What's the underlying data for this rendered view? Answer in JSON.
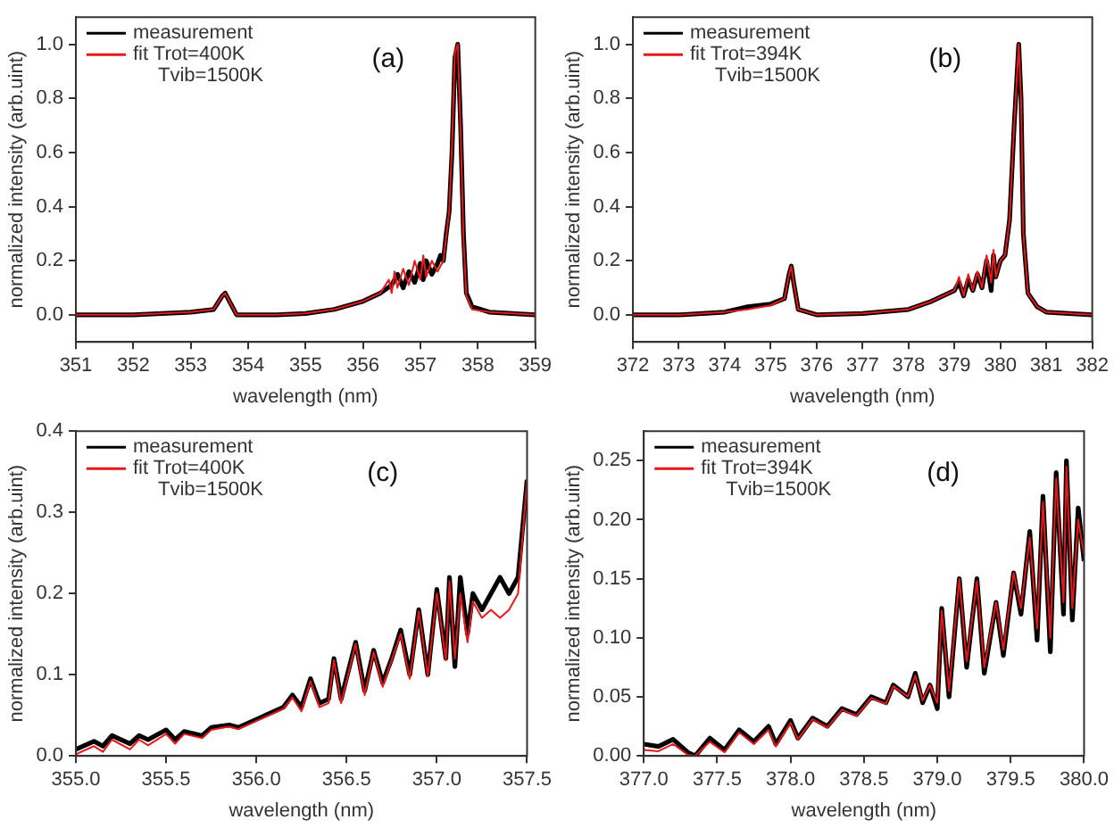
{
  "chart_data": [
    {
      "type": "line",
      "xlabel": "wavelength (nm)",
      "ylabel": "normalized intensity (arb.uint)",
      "annotations": [
        "(a)"
      ],
      "legend": "top left",
      "grid": false,
      "xlim": [
        351,
        359
      ],
      "xticks": [
        351,
        352,
        353,
        354,
        355,
        356,
        357,
        358,
        359
      ],
      "ylim": [
        -0.1,
        1.1
      ],
      "yticks": [
        {
          "value": 0,
          "label": "0.0"
        },
        {
          "value": 0.2,
          "label": "0.2"
        },
        {
          "value": 0.4,
          "label": "0.4"
        },
        {
          "value": 0.6,
          "label": "0.6"
        },
        {
          "value": 0.8,
          "label": "0.8"
        },
        {
          "value": 1,
          "label": "1.0"
        }
      ],
      "series": [
        {
          "name": "measurement",
          "color": "#000000",
          "x": [
            351,
            352,
            353,
            353.4,
            353.55,
            353.6,
            353.7,
            353.8,
            354.5,
            355,
            355.5,
            356,
            356.3,
            356.5,
            356.6,
            356.7,
            356.8,
            356.9,
            357,
            357.05,
            357.1,
            357.2,
            357.3,
            357.35,
            357.4,
            357.45,
            357.5,
            357.55,
            357.6,
            357.65,
            357.7,
            357.75,
            357.8,
            357.9,
            358.2,
            359
          ],
          "values": [
            0,
            0,
            0.01,
            0.02,
            0.07,
            0.08,
            0.04,
            0,
            0,
            0.005,
            0.02,
            0.05,
            0.08,
            0.11,
            0.15,
            0.1,
            0.16,
            0.12,
            0.19,
            0.13,
            0.2,
            0.15,
            0.19,
            0.22,
            0.2,
            0.3,
            0.38,
            0.6,
            0.95,
            1,
            0.7,
            0.3,
            0.08,
            0.03,
            0.01,
            0
          ]
        },
        {
          "name": "fit Trot=400K Tvib=1500K",
          "color": "#e8181a",
          "x": [
            351,
            352,
            353,
            353.4,
            353.55,
            353.6,
            353.7,
            353.8,
            354.5,
            355,
            355.5,
            356,
            356.3,
            356.45,
            356.5,
            356.55,
            356.6,
            356.7,
            356.8,
            356.9,
            357,
            357.05,
            357.1,
            357.2,
            357.3,
            357.4,
            357.45,
            357.5,
            357.55,
            357.6,
            357.65,
            357.7,
            357.75,
            357.8,
            357.9,
            358.2,
            359
          ],
          "values": [
            0,
            0,
            0.01,
            0.02,
            0.07,
            0.08,
            0.04,
            0,
            0,
            0.005,
            0.02,
            0.05,
            0.08,
            0.13,
            0.08,
            0.16,
            0.1,
            0.17,
            0.11,
            0.2,
            0.13,
            0.22,
            0.14,
            0.2,
            0.16,
            0.2,
            0.29,
            0.38,
            0.62,
            0.97,
            1,
            0.68,
            0.28,
            0.07,
            0.02,
            0.01,
            0
          ]
        }
      ]
    },
    {
      "type": "line",
      "xlabel": "wavelength (nm)",
      "ylabel": "normalized intensity (arb.uint)",
      "annotations": [
        "(b)"
      ],
      "legend": "top left",
      "grid": false,
      "xlim": [
        372,
        382
      ],
      "xticks": [
        372,
        373,
        374,
        375,
        376,
        377,
        378,
        379,
        380,
        381,
        382
      ],
      "ylim": [
        -0.1,
        1.1
      ],
      "yticks": [
        {
          "value": 0,
          "label": "0.0"
        },
        {
          "value": 0.2,
          "label": "0.2"
        },
        {
          "value": 0.4,
          "label": "0.4"
        },
        {
          "value": 0.6,
          "label": "0.6"
        },
        {
          "value": 0.8,
          "label": "0.8"
        },
        {
          "value": 1,
          "label": "1.0"
        }
      ],
      "series": [
        {
          "name": "measurement",
          "color": "#000000",
          "x": [
            372,
            373,
            374,
            374.5,
            375,
            375.3,
            375.4,
            375.45,
            375.5,
            375.6,
            376,
            377,
            378,
            378.5,
            379,
            379.1,
            379.2,
            379.3,
            379.4,
            379.5,
            379.6,
            379.7,
            379.8,
            379.85,
            379.9,
            380,
            380.1,
            380.2,
            380.3,
            380.4,
            380.45,
            380.5,
            380.6,
            380.8,
            381,
            382
          ],
          "values": [
            0,
            0,
            0.01,
            0.03,
            0.04,
            0.06,
            0.15,
            0.18,
            0.12,
            0.02,
            0,
            0.005,
            0.02,
            0.05,
            0.09,
            0.12,
            0.07,
            0.13,
            0.09,
            0.15,
            0.1,
            0.2,
            0.09,
            0.22,
            0.14,
            0.2,
            0.22,
            0.35,
            0.7,
            1,
            0.8,
            0.3,
            0.08,
            0.03,
            0.01,
            0
          ]
        },
        {
          "name": "fit Trot=394K Tvib=1500K",
          "color": "#e8181a",
          "x": [
            372,
            373,
            374,
            374.5,
            375,
            375.3,
            375.4,
            375.45,
            375.5,
            375.6,
            376,
            377,
            378,
            378.5,
            379,
            379.1,
            379.2,
            379.3,
            379.4,
            379.5,
            379.6,
            379.7,
            379.8,
            379.85,
            379.9,
            380,
            380.1,
            380.2,
            380.3,
            380.4,
            380.45,
            380.5,
            380.6,
            380.8,
            381,
            382
          ],
          "values": [
            0,
            0,
            0.01,
            0.02,
            0.035,
            0.06,
            0.15,
            0.18,
            0.12,
            0.02,
            0,
            0.005,
            0.02,
            0.05,
            0.09,
            0.14,
            0.07,
            0.15,
            0.09,
            0.16,
            0.1,
            0.22,
            0.12,
            0.24,
            0.14,
            0.2,
            0.22,
            0.35,
            0.7,
            1,
            0.8,
            0.3,
            0.08,
            0.03,
            0.01,
            0
          ]
        }
      ]
    },
    {
      "type": "line",
      "xlabel": "wavelength (nm)",
      "ylabel": "normalized intensity (arb.uint)",
      "annotations": [
        "(c)"
      ],
      "legend": "top left",
      "grid": false,
      "xlim": [
        355,
        357.5
      ],
      "xticks": [
        {
          "value": 355,
          "label": "355.0"
        },
        {
          "value": 355.5,
          "label": "355.5"
        },
        {
          "value": 356,
          "label": "356.0"
        },
        {
          "value": 356.5,
          "label": "356.5"
        },
        {
          "value": 357,
          "label": "357.0"
        },
        {
          "value": 357.5,
          "label": "357.5"
        }
      ],
      "ylim": [
        0,
        0.4
      ],
      "yticks": [
        {
          "value": 0,
          "label": "0.0"
        },
        {
          "value": 0.1,
          "label": "0.1"
        },
        {
          "value": 0.2,
          "label": "0.2"
        },
        {
          "value": 0.3,
          "label": "0.3"
        },
        {
          "value": 0.4,
          "label": "0.4"
        }
      ],
      "series": [
        {
          "name": "measurement",
          "color": "#000000",
          "x": [
            355,
            355.1,
            355.15,
            355.2,
            355.3,
            355.35,
            355.4,
            355.5,
            355.55,
            355.6,
            355.7,
            355.75,
            355.85,
            355.9,
            356,
            356.1,
            356.15,
            356.2,
            356.25,
            356.3,
            356.35,
            356.4,
            356.43,
            356.47,
            356.55,
            356.6,
            356.65,
            356.7,
            356.75,
            356.8,
            356.85,
            356.9,
            356.95,
            357,
            357.05,
            357.07,
            357.1,
            357.13,
            357.17,
            357.2,
            357.25,
            357.3,
            357.35,
            357.4,
            357.45,
            357.5
          ],
          "values": [
            0.008,
            0.018,
            0.012,
            0.025,
            0.015,
            0.025,
            0.02,
            0.032,
            0.02,
            0.03,
            0.025,
            0.035,
            0.038,
            0.035,
            0.045,
            0.055,
            0.06,
            0.075,
            0.06,
            0.095,
            0.065,
            0.07,
            0.12,
            0.07,
            0.14,
            0.08,
            0.13,
            0.09,
            0.12,
            0.155,
            0.1,
            0.18,
            0.1,
            0.205,
            0.12,
            0.22,
            0.11,
            0.22,
            0.15,
            0.2,
            0.18,
            0.2,
            0.22,
            0.2,
            0.22,
            0.34
          ]
        },
        {
          "name": "fit Trot=400K Tvib=1500K",
          "color": "#e8181a",
          "x": [
            355,
            355.1,
            355.15,
            355.2,
            355.3,
            355.35,
            355.4,
            355.5,
            355.55,
            355.6,
            355.7,
            355.75,
            355.85,
            355.9,
            356,
            356.1,
            356.15,
            356.2,
            356.25,
            356.3,
            356.35,
            356.4,
            356.43,
            356.47,
            356.55,
            356.6,
            356.65,
            356.7,
            356.75,
            356.8,
            356.85,
            356.9,
            356.95,
            357,
            357.05,
            357.07,
            357.1,
            357.13,
            357.17,
            357.2,
            357.25,
            357.3,
            357.35,
            357.4,
            357.45,
            357.5
          ],
          "values": [
            0.002,
            0.012,
            0.005,
            0.02,
            0.008,
            0.02,
            0.013,
            0.027,
            0.015,
            0.027,
            0.022,
            0.032,
            0.036,
            0.033,
            0.043,
            0.053,
            0.058,
            0.072,
            0.055,
            0.092,
            0.06,
            0.065,
            0.118,
            0.065,
            0.138,
            0.075,
            0.128,
            0.085,
            0.118,
            0.15,
            0.095,
            0.178,
            0.098,
            0.2,
            0.118,
            0.215,
            0.12,
            0.2,
            0.14,
            0.19,
            0.17,
            0.18,
            0.17,
            0.18,
            0.2,
            0.34
          ]
        }
      ]
    },
    {
      "type": "line",
      "xlabel": "wavelength (nm)",
      "ylabel": "normalized intensity (arb.uint)",
      "annotations": [
        "(d)"
      ],
      "legend": "top left",
      "grid": false,
      "xlim": [
        377,
        380
      ],
      "xticks": [
        {
          "value": 377,
          "label": "377.0"
        },
        {
          "value": 377.5,
          "label": "377.5"
        },
        {
          "value": 378,
          "label": "378.0"
        },
        {
          "value": 378.5,
          "label": "378.5"
        },
        {
          "value": 379,
          "label": "379.0"
        },
        {
          "value": 379.5,
          "label": "379.5"
        },
        {
          "value": 380,
          "label": "380.0"
        }
      ],
      "ylim": [
        0,
        0.275
      ],
      "yticks": [
        {
          "value": 0,
          "label": "0.00"
        },
        {
          "value": 0.05,
          "label": "0.05"
        },
        {
          "value": 0.1,
          "label": "0.10"
        },
        {
          "value": 0.15,
          "label": "0.15"
        },
        {
          "value": 0.2,
          "label": "0.20"
        },
        {
          "value": 0.25,
          "label": "0.25"
        }
      ],
      "series": [
        {
          "name": "measurement",
          "color": "#000000",
          "x": [
            377,
            377.1,
            377.2,
            377.3,
            377.35,
            377.45,
            377.55,
            377.65,
            377.75,
            377.85,
            377.9,
            378,
            378.05,
            378.15,
            378.25,
            378.35,
            378.45,
            378.55,
            378.65,
            378.7,
            378.8,
            378.85,
            378.9,
            378.95,
            379,
            379.03,
            379.08,
            379.15,
            379.2,
            379.27,
            379.32,
            379.4,
            379.45,
            379.52,
            379.57,
            379.63,
            379.68,
            379.72,
            379.77,
            379.81,
            379.86,
            379.88,
            379.92,
            379.96,
            380
          ],
          "values": [
            0.01,
            0.008,
            0.014,
            0.003,
            0,
            0.015,
            0.005,
            0.022,
            0.012,
            0.025,
            0.01,
            0.03,
            0.015,
            0.032,
            0.025,
            0.04,
            0.035,
            0.05,
            0.045,
            0.06,
            0.05,
            0.07,
            0.045,
            0.06,
            0.04,
            0.125,
            0.05,
            0.15,
            0.075,
            0.15,
            0.07,
            0.13,
            0.085,
            0.155,
            0.12,
            0.19,
            0.098,
            0.22,
            0.088,
            0.24,
            0.12,
            0.25,
            0.115,
            0.21,
            0.165
          ]
        },
        {
          "name": "fit Trot=394K Tvib=1500K",
          "color": "#e8181a",
          "x": [
            377,
            377.1,
            377.2,
            377.3,
            377.35,
            377.45,
            377.55,
            377.65,
            377.75,
            377.85,
            377.9,
            378,
            378.05,
            378.15,
            378.25,
            378.35,
            378.45,
            378.55,
            378.65,
            378.7,
            378.8,
            378.85,
            378.9,
            378.95,
            379,
            379.03,
            379.08,
            379.15,
            379.2,
            379.27,
            379.32,
            379.4,
            379.45,
            379.52,
            379.57,
            379.63,
            379.68,
            379.72,
            379.77,
            379.81,
            379.86,
            379.88,
            379.92,
            379.96,
            380
          ],
          "values": [
            0.005,
            0.004,
            0.01,
            0.001,
            0,
            0.012,
            0.003,
            0.02,
            0.01,
            0.022,
            0.008,
            0.028,
            0.014,
            0.031,
            0.024,
            0.039,
            0.034,
            0.049,
            0.044,
            0.059,
            0.05,
            0.068,
            0.047,
            0.06,
            0.045,
            0.123,
            0.055,
            0.15,
            0.08,
            0.148,
            0.075,
            0.13,
            0.09,
            0.155,
            0.125,
            0.185,
            0.108,
            0.215,
            0.1,
            0.235,
            0.13,
            0.245,
            0.125,
            0.2,
            0.17
          ]
        }
      ]
    }
  ]
}
